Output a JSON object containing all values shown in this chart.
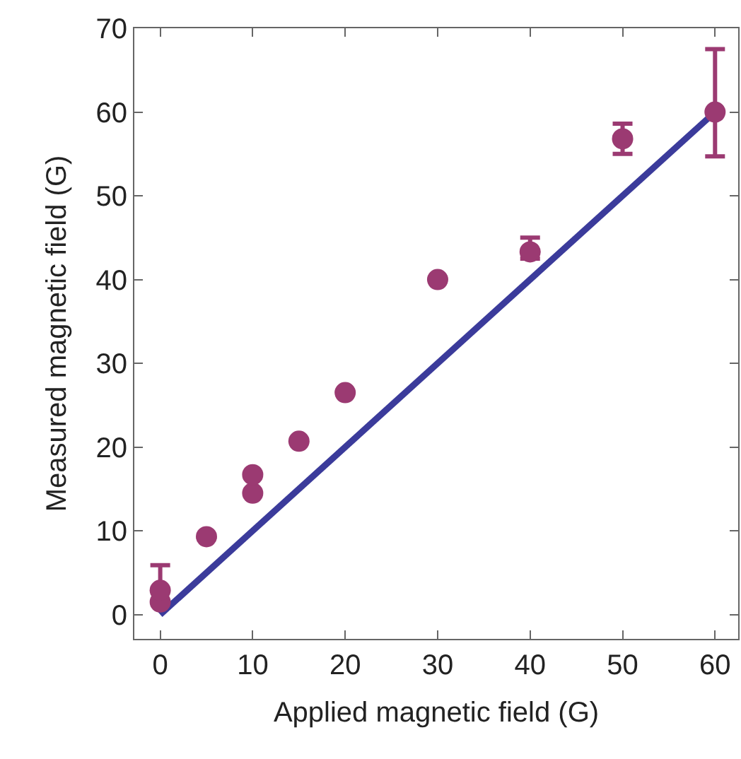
{
  "chart_data": {
    "type": "scatter",
    "xlabel": "Applied magnetic field (G)",
    "ylabel": "Measured magnetic field (G)",
    "xlim": [
      -2.8,
      62.5
    ],
    "ylim": [
      -2.9,
      70
    ],
    "xticks": [
      0,
      10,
      20,
      30,
      40,
      50,
      60
    ],
    "yticks": [
      0,
      10,
      20,
      30,
      40,
      50,
      60,
      70
    ],
    "grid": false,
    "legend": false,
    "marker": "circle",
    "series": [
      {
        "type": "line",
        "color": "#3b3b9b",
        "x": [
          0,
          60
        ],
        "values": [
          0,
          60
        ],
        "marker": "none",
        "line_style": "solid"
      },
      {
        "color": "#9b3a72",
        "x": [
          0,
          0,
          5,
          10,
          10,
          15,
          20,
          30,
          40,
          50,
          60
        ],
        "values": [
          1.5,
          2.9,
          9.3,
          14.5,
          16.7,
          20.7,
          26.5,
          40,
          43.3,
          56.8,
          60
        ],
        "errors": [
          null,
          [
            2.9,
            5.9
          ],
          null,
          null,
          null,
          null,
          null,
          null,
          [
            42.5,
            45
          ],
          [
            55,
            58.6
          ],
          [
            54.7,
            67.5
          ]
        ]
      }
    ]
  }
}
